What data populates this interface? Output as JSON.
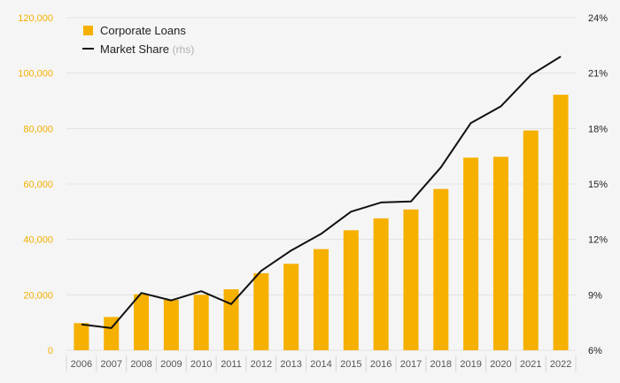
{
  "chart_data": {
    "type": "bar+line",
    "categories": [
      "2006",
      "2007",
      "2008",
      "2009",
      "2010",
      "2011",
      "2012",
      "2013",
      "2014",
      "2015",
      "2016",
      "2017",
      "2018",
      "2019",
      "2020",
      "2021",
      "2022"
    ],
    "series": [
      {
        "name": "Corporate Loans",
        "type": "bar",
        "axis": "left",
        "values": [
          9800,
          12000,
          20200,
          18200,
          20000,
          22000,
          27800,
          31200,
          36500,
          43300,
          47600,
          50800,
          58200,
          69500,
          69800,
          79300,
          92200
        ]
      },
      {
        "name": "Market Share",
        "type": "line",
        "axis": "right",
        "values": [
          7.4,
          7.2,
          9.1,
          8.7,
          9.2,
          8.5,
          10.3,
          11.4,
          12.3,
          13.5,
          14.0,
          14.05,
          15.9,
          18.3,
          19.2,
          20.9,
          21.9
        ]
      }
    ],
    "left_axis": {
      "ylim": [
        0,
        120000
      ],
      "ticks": [
        0,
        20000,
        40000,
        60000,
        80000,
        100000,
        120000
      ],
      "tick_labels": [
        "0",
        "20,000",
        "40,000",
        "60,000",
        "80,000",
        "100,000",
        "120,000"
      ]
    },
    "right_axis": {
      "ylim": [
        6,
        24
      ],
      "ticks": [
        6,
        9,
        12,
        15,
        18,
        21,
        24
      ],
      "tick_labels": [
        "6%",
        "9%",
        "12%",
        "15%",
        "18%",
        "21%",
        "24%"
      ]
    },
    "legend": {
      "position": "top-left",
      "items": [
        {
          "label": "Corporate Loans",
          "note": ""
        },
        {
          "label": "Market Share",
          "note": "(rhs)"
        }
      ]
    },
    "grid": true
  },
  "colors": {
    "bar": "#f5b000",
    "line": "#111111",
    "grid": "#e2e2e2",
    "background": "#f5f5f5"
  }
}
